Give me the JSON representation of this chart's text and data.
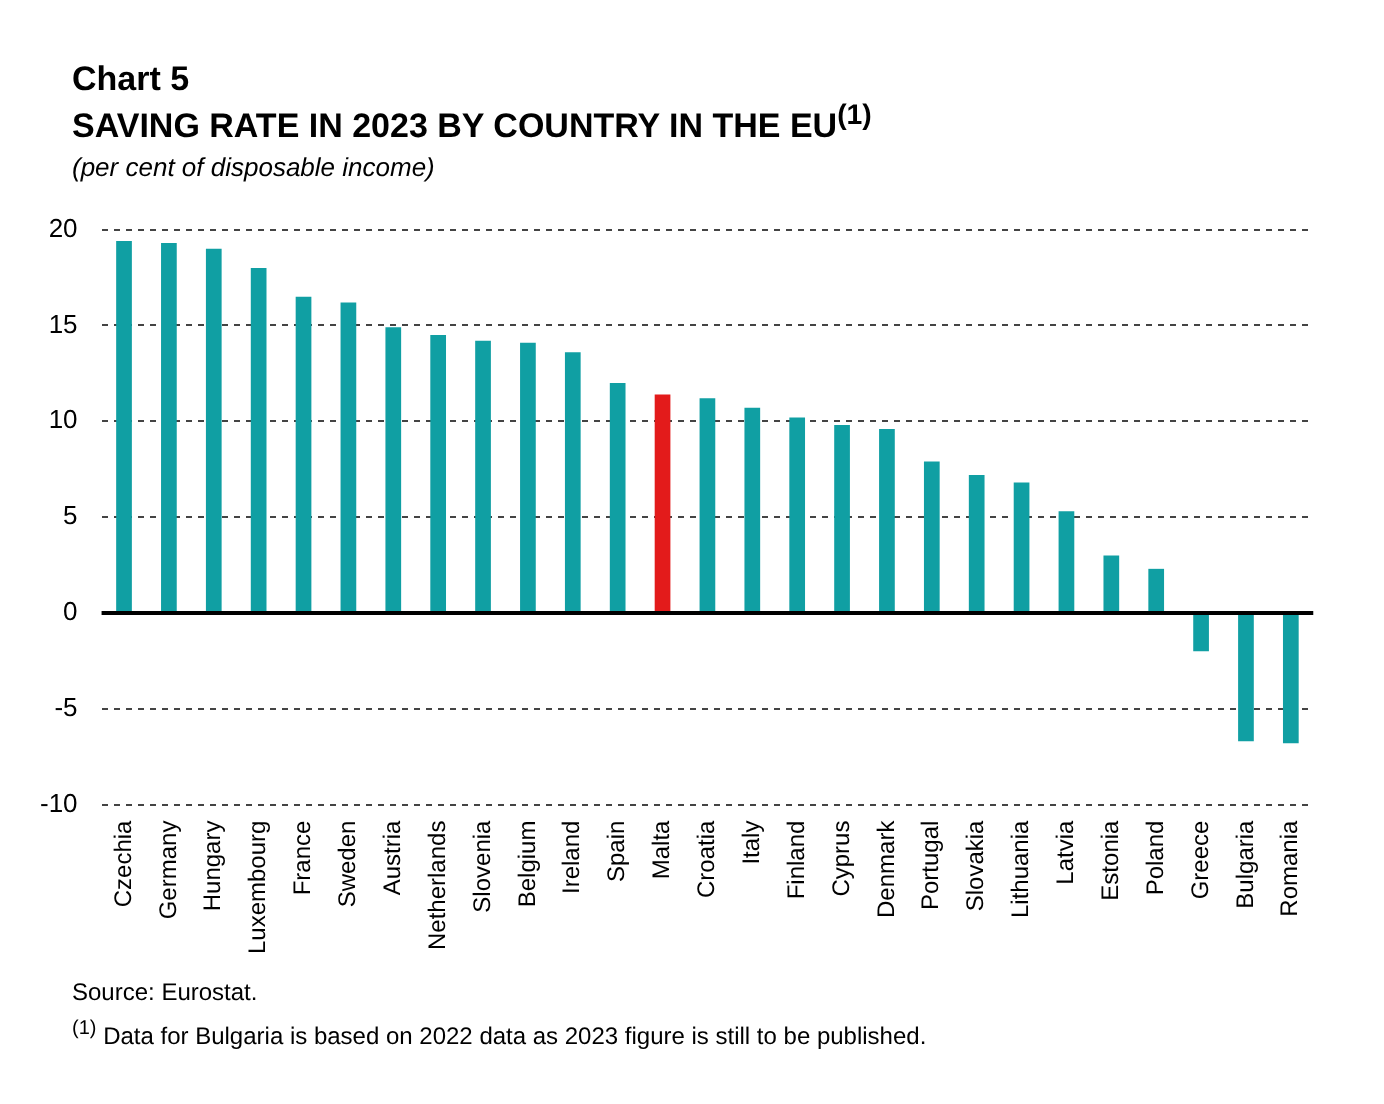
{
  "chart_data": {
    "type": "bar",
    "title": "Chart 5",
    "subtitle": "SAVING RATE IN 2023 BY COUNTRY IN THE EU$^{(1)}$",
    "ylabel": "(per cent of disposable income)",
    "categories": [
      "Czechia",
      "Germany",
      "Hungary",
      "Luxembourg",
      "France",
      "Sweden",
      "Austria",
      "Netherlands",
      "Slovenia",
      "Belgium",
      "Ireland",
      "Spain",
      "Malta",
      "Croatia",
      "Italy",
      "Finland",
      "Cyprus",
      "Denmark",
      "Portugal",
      "Slovakia",
      "Lithuania",
      "Latvia",
      "Estonia",
      "Poland",
      "Greece",
      "Bulgaria",
      "Romania"
    ],
    "values": [
      19.4,
      19.3,
      19.0,
      18.0,
      16.5,
      16.2,
      14.9,
      14.5,
      14.2,
      14.1,
      13.6,
      12.0,
      11.4,
      11.2,
      10.7,
      10.2,
      9.8,
      9.6,
      7.9,
      7.2,
      6.8,
      5.3,
      3.0,
      2.3,
      -2.0,
      -6.7,
      -6.8
    ],
    "colors": [
      "#109fa3",
      "#109fa3",
      "#109fa3",
      "#109fa3",
      "#109fa3",
      "#109fa3",
      "#109fa3",
      "#109fa3",
      "#109fa3",
      "#109fa3",
      "#109fa3",
      "#109fa3",
      "#e31b1b",
      "#109fa3",
      "#109fa3",
      "#109fa3",
      "#109fa3",
      "#109fa3",
      "#109fa3",
      "#109fa3",
      "#109fa3",
      "#109fa3",
      "#109fa3",
      "#109fa3",
      "#109fa3",
      "#109fa3",
      "#109fa3"
    ],
    "ylim": [
      -10,
      20
    ],
    "yticks": [
      -10,
      -5,
      0,
      5,
      10,
      15,
      20
    ],
    "grid": "y",
    "legend": false,
    "annotations": [
      "Source: Eurostat.",
      "$^{(1)}$ Data for Bulgaria is based on 2022 data as 2023 figure is still to be published."
    ]
  }
}
